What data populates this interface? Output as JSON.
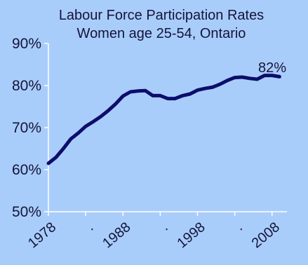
{
  "chart_data": {
    "type": "line",
    "title_lines": [
      "Labour Force Participation Rates",
      "Women age 25-54, Ontario"
    ],
    "xlabel": "",
    "ylabel": "",
    "xlim": [
      1978,
      2010
    ],
    "ylim": [
      50,
      90
    ],
    "y_ticks": [
      50,
      60,
      70,
      80,
      90
    ],
    "y_tick_labels": [
      "50%",
      "60%",
      "70%",
      "80%",
      "90%"
    ],
    "x_ticks": [
      1978,
      1983,
      1988,
      1993,
      1998,
      2003,
      2008
    ],
    "x_tick_labels": [
      "1978",
      ".",
      "1988",
      ".",
      "1998",
      ".",
      "2008"
    ],
    "grid": false,
    "legend": "none",
    "line_color": "#0d0d6b",
    "axis_color": "#ffffff",
    "end_label": "82%",
    "series": [
      {
        "x": [
          1978,
          1979,
          1980,
          1981,
          1982,
          1983,
          1984,
          1985,
          1986,
          1987,
          1988,
          1989,
          1990,
          1991,
          1992,
          1993,
          1994,
          1995,
          1996,
          1997,
          1998,
          1999,
          2000,
          2001,
          2002,
          2003,
          2004,
          2005,
          2006,
          2007,
          2008,
          2009
        ],
        "values": [
          61.5,
          62.9,
          65.0,
          67.3,
          68.7,
          70.3,
          71.4,
          72.6,
          74.0,
          75.6,
          77.5,
          78.5,
          78.7,
          78.8,
          77.6,
          77.6,
          76.9,
          76.9,
          77.6,
          78.0,
          78.9,
          79.3,
          79.6,
          80.3,
          81.2,
          81.9,
          82.0,
          81.7,
          81.5,
          82.4,
          82.4,
          82.1
        ]
      }
    ]
  }
}
